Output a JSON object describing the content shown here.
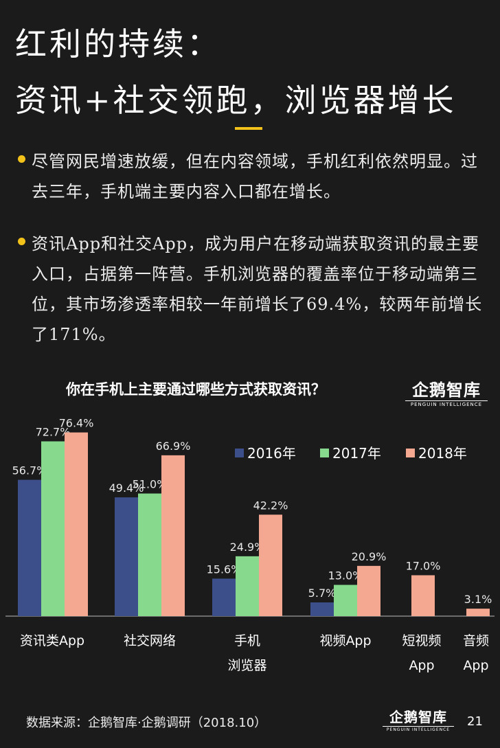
{
  "title_line1": "红利的持续：",
  "title_line2": "资讯+社交领跑，浏览器增长",
  "bullets": [
    "尽管网民增速放缓，但在内容领域，手机红利依然明显。过去三年，手机端主要内容入口都在增长。",
    "资讯App和社交App，成为用户在移动端获取资讯的最主要入口，占据第一阵营。手机浏览器的覆盖率位于移动端第三位，其市场渗透率相较一年前增长了69.4%，较两年前增长了171%。"
  ],
  "logo": {
    "zh": "企鹅智库",
    "en": "PENGUIN INTELLIGENCE"
  },
  "source": "数据来源：企鹅智库·企鹅调研（2018.10）",
  "page_number": "21",
  "colors": {
    "2016": "#3c4f8a",
    "2017": "#86d98d",
    "2018": "#f5a891",
    "accent": "#f2c21b"
  },
  "chart_data": {
    "type": "bar",
    "title": "你在手机上主要通过哪些方式获取资讯？",
    "categories": [
      [
        "资讯类App"
      ],
      [
        "社交网络"
      ],
      [
        "手机",
        "浏览器"
      ],
      [
        "视频App"
      ],
      [
        "短视频",
        "App"
      ],
      [
        "音频",
        "App"
      ]
    ],
    "series": [
      {
        "name": "2016年",
        "values": [
          56.7,
          49.4,
          15.6,
          5.7,
          null,
          null
        ],
        "labels": [
          "56.7%",
          "49.4%",
          "15.6%",
          "5.7%",
          null,
          null
        ]
      },
      {
        "name": "2017年",
        "values": [
          72.7,
          51.0,
          24.9,
          13.0,
          null,
          null
        ],
        "labels": [
          "72.7%",
          "51.0%",
          "24.9%",
          "13.0%",
          null,
          null
        ]
      },
      {
        "name": "2018年",
        "values": [
          76.4,
          66.9,
          42.2,
          20.9,
          17.0,
          3.1
        ],
        "labels": [
          "76.4%",
          "66.9%",
          "42.2%",
          "20.9%",
          "17.0%",
          "3.1%"
        ]
      }
    ],
    "legend_position": "top-right",
    "ylim": [
      0,
      76.4
    ]
  }
}
